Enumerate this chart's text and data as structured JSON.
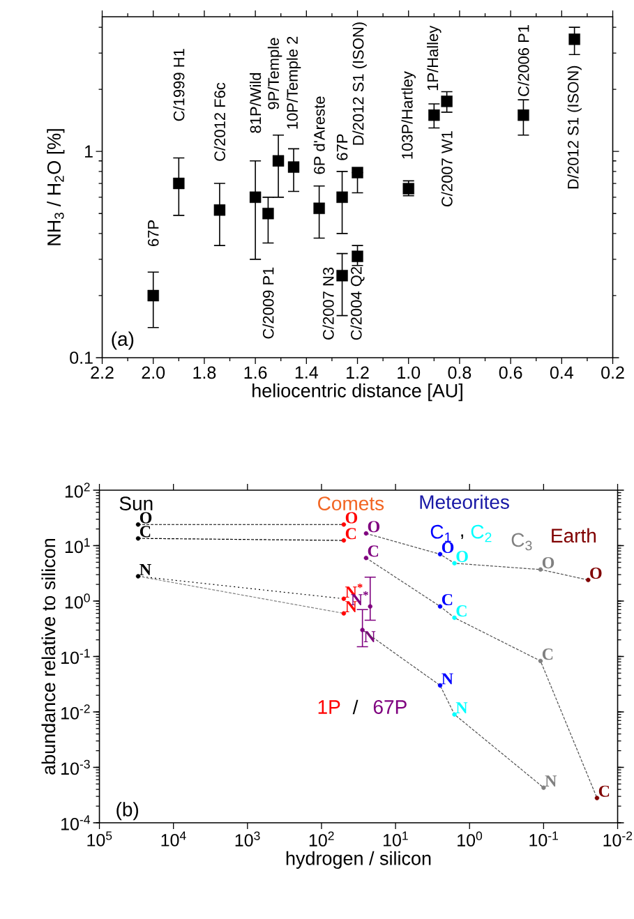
{
  "chart_data": [
    {
      "type": "scatter",
      "xlabel": "heliocentric distance [AU]",
      "ylabel": "NH$_{3}$ / H$_{2}$O [%]",
      "log": "y",
      "marker": "square",
      "xlim": [
        2.2,
        0.2
      ],
      "ylim": [
        0.1,
        4.5
      ],
      "xticks": [
        2.2,
        {
          "value": 2.1,
          "label": null
        },
        {
          "value": 2.0,
          "label": "2.0"
        },
        {
          "value": 1.9,
          "label": null
        },
        1.8,
        {
          "value": 1.7,
          "label": null
        },
        1.6,
        {
          "value": 1.5,
          "label": null
        },
        1.4,
        {
          "value": 1.3,
          "label": null
        },
        1.2,
        {
          "value": 1.1,
          "label": null
        },
        {
          "value": 1.0,
          "label": "1.0"
        },
        {
          "value": 0.9,
          "label": null
        },
        0.8,
        {
          "value": 0.7,
          "label": null
        },
        0.6,
        {
          "value": 0.5,
          "label": null
        },
        0.4,
        {
          "value": 0.3,
          "label": null
        },
        0.2
      ],
      "yticks": [
        0.1,
        {
          "value": 0.2,
          "label": null
        },
        {
          "value": 0.3,
          "label": null
        },
        {
          "value": 0.4,
          "label": null
        },
        {
          "value": 0.5,
          "label": null
        },
        {
          "value": 0.6,
          "label": null
        },
        {
          "value": 0.7,
          "label": null
        },
        {
          "value": 0.8,
          "label": null
        },
        {
          "value": 0.9,
          "label": null
        },
        1,
        {
          "value": 2,
          "label": null
        },
        {
          "value": 3,
          "label": null
        },
        {
          "value": 4,
          "label": null
        }
      ],
      "series": [
        {
          "color": "#000000",
          "x": [
            2.0,
            1.9,
            1.74,
            1.6,
            1.55,
            1.51,
            1.45,
            1.35,
            1.26,
            1.26,
            1.2,
            1.2,
            1.0,
            0.9,
            0.85,
            0.55,
            0.35
          ],
          "values": [
            0.2,
            0.7,
            0.52,
            0.6,
            0.5,
            0.9,
            0.84,
            0.53,
            0.6,
            0.25,
            0.79,
            0.31,
            0.66,
            1.5,
            1.75,
            1.5,
            3.5
          ],
          "errors": [
            [
              0.14,
              0.26
            ],
            [
              0.49,
              0.93
            ],
            [
              0.35,
              0.7
            ],
            [
              0.3,
              0.9
            ],
            [
              0.36,
              0.6
            ],
            [
              0.6,
              1.2
            ],
            [
              0.64,
              1.03
            ],
            [
              0.38,
              0.68
            ],
            [
              0.4,
              0.8
            ],
            [
              0.16,
              0.32
            ],
            [
              0.63,
              0.79
            ],
            [
              0.28,
              0.35
            ],
            [
              0.61,
              0.72
            ],
            [
              1.3,
              1.7
            ],
            [
              1.55,
              1.95
            ],
            [
              1.2,
              1.78
            ],
            [
              2.95,
              4.0
            ]
          ]
        }
      ],
      "annotations": [
        "67P",
        "C/1999 H1",
        "C/2012 F6c",
        "81P/Wild",
        "C/2009 P1",
        "9P/Temple",
        "10P/Temple 2",
        "6P d'Areste",
        "67P",
        "C/2007 N3",
        "D/2012 S1 (ISON)",
        "C/2004 Q2",
        "103P/Hartley",
        "1P/Halley",
        "C/2007 W1",
        "C/2006 P1",
        "D/2012 S1 (ISON)",
        "(a)"
      ]
    },
    {
      "type": "scatter",
      "xlabel": "hydrogen / silicon",
      "ylabel": "abundance relative to silicon",
      "log": "xy",
      "xlim": [
        100000,
        0.01
      ],
      "ylim": [
        0.0001,
        100
      ],
      "xticks": [
        {
          "value": 100000,
          "label": "10$^{5}$"
        },
        {
          "value": 10000,
          "label": "10$^{4}$"
        },
        {
          "value": 1000,
          "label": "10$^{3}$"
        },
        {
          "value": 100,
          "label": "10$^{2}$"
        },
        {
          "value": 10,
          "label": "10$^{1}$"
        },
        {
          "value": 1,
          "label": "10$^{0}$"
        },
        {
          "value": 0.1,
          "label": "10$^{-1}$"
        },
        {
          "value": 0.01,
          "label": "10$^{-2}$"
        }
      ],
      "yticks": [
        {
          "value": 0.0001,
          "label": "10$^{-4}$"
        },
        {
          "value": 0.001,
          "label": "10$^{-3}$"
        },
        {
          "value": 0.01,
          "label": "10$^{-2}$"
        },
        {
          "value": 0.1,
          "label": "10$^{-1}$"
        },
        {
          "value": 1,
          "label": "10$^{0}$"
        },
        {
          "value": 10,
          "label": "10$^{1}$"
        },
        {
          "value": 100,
          "label": "10$^{2}$"
        }
      ],
      "series": [
        {
          "name": "Sun",
          "marker": "circle",
          "color": "#000000",
          "x": [
            30000,
            30000,
            30000
          ],
          "values": [
            24,
            13.5,
            2.8
          ],
          "value_labels": [
            "O",
            "C",
            "N"
          ]
        },
        {
          "name": "1P",
          "marker": "circle",
          "color": "#ff0000",
          "x": [
            50,
            50,
            50,
            50
          ],
          "values": [
            24,
            12.4,
            1.1,
            0.6
          ],
          "value_labels": [
            "O",
            "C",
            "N$^{*}$",
            "N"
          ]
        },
        {
          "name": "67P",
          "marker": "circle",
          "color": "#7f007f",
          "x": [
            25,
            25,
            22,
            28
          ],
          "values": [
            16.6,
            6.0,
            0.8,
            0.3
          ],
          "value_labels": [
            "O",
            "C",
            "N$^{*}$",
            "N"
          ],
          "errors": [
            null,
            null,
            [
              0.45,
              2.7
            ],
            [
              0.15,
              0.7
            ]
          ]
        },
        {
          "name": "C$_{1}$",
          "marker": "circle",
          "color": "#0000ff",
          "x": [
            2.5,
            2.5,
            2.5
          ],
          "values": [
            7.0,
            0.8,
            0.03
          ],
          "value_labels": [
            "O",
            "C",
            "N"
          ]
        },
        {
          "name": "C$_{2}$",
          "marker": "circle",
          "color": "#00ffff",
          "x": [
            1.6,
            1.6,
            1.6
          ],
          "values": [
            4.8,
            0.5,
            0.009
          ],
          "value_labels": [
            "O",
            "C",
            "N"
          ]
        },
        {
          "name": "C$_{3}$",
          "marker": "circle",
          "color": "#808080",
          "x": [
            0.11,
            0.11,
            0.1
          ],
          "values": [
            3.7,
            0.083,
            0.00043
          ],
          "value_labels": [
            "O",
            "C",
            "N"
          ]
        },
        {
          "name": "Earth",
          "marker": "circle",
          "color": "#800000",
          "x": [
            0.025,
            0.019
          ],
          "values": [
            2.4,
            0.00028
          ],
          "value_labels": [
            "O",
            "C"
          ]
        },
        {
          "type": "line",
          "color": "#000000",
          "line_style": "dashed",
          "x": [
            30000,
            50
          ],
          "values": [
            24,
            24
          ]
        },
        {
          "type": "line",
          "color": "#000000",
          "line_style": "dashed",
          "x": [
            30000,
            50
          ],
          "values": [
            13.5,
            12.4
          ]
        },
        {
          "type": "line",
          "color": "#000000",
          "line_style": "dotted",
          "x": [
            30000,
            50
          ],
          "values": [
            2.8,
            1.1
          ]
        },
        {
          "type": "line",
          "color": "#808080",
          "line_style": "dashed",
          "x": [
            30000,
            50
          ],
          "values": [
            2.8,
            0.6
          ]
        },
        {
          "type": "line",
          "color": "#505050",
          "line_style": "dashed",
          "x": [
            25,
            2.5,
            1.6,
            0.11,
            0.025
          ],
          "values": [
            16.6,
            7.0,
            4.8,
            3.7,
            2.4
          ]
        },
        {
          "type": "line",
          "color": "#505050",
          "line_style": "dashed",
          "x": [
            25,
            2.5,
            1.6,
            0.11,
            0.019
          ],
          "values": [
            6.0,
            0.8,
            0.5,
            0.083,
            0.00028
          ]
        },
        {
          "type": "line",
          "color": "#505050",
          "line_style": "dashed",
          "x": [
            28,
            2.5,
            1.6,
            0.1
          ],
          "values": [
            0.3,
            0.03,
            0.009,
            0.00043
          ]
        }
      ],
      "annotations": [
        "Comets",
        "Meteorites",
        "/",
        ",",
        "(b)"
      ]
    }
  ]
}
